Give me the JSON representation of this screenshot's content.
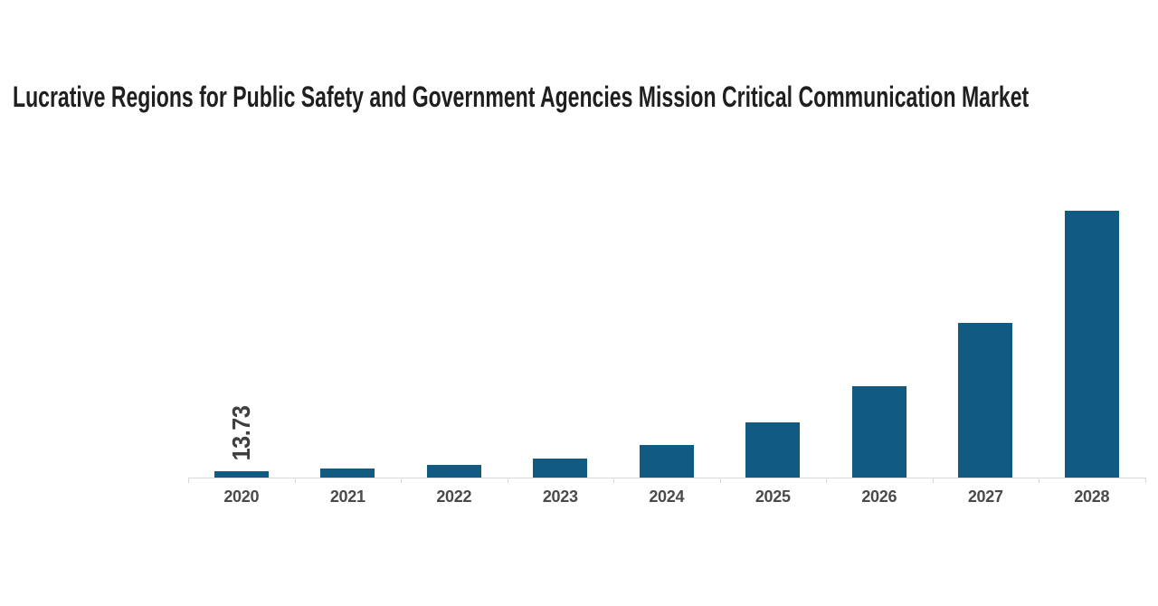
{
  "title": {
    "text": "Lucrative Regions for Public Safety and Government Agencies Mission Critical Communication Market"
  },
  "chart_data": {
    "type": "bar",
    "title": "Lucrative Regions for Public Safety and Government Agencies Mission Critical Communication Market",
    "categories": [
      "2020",
      "2021",
      "2022",
      "2023",
      "2024",
      "2025",
      "2026",
      "2027",
      "2028"
    ],
    "values": [
      13.73,
      19.6,
      26.7,
      41.2,
      69.8,
      118.9,
      197.3,
      335.4,
      578.6
    ],
    "value_labels": [
      "13.73",
      "",
      "",
      "",
      "",
      "",
      "",
      "",
      ""
    ],
    "xlabel": "",
    "ylabel": "",
    "ylim": [
      0,
      590
    ],
    "grid": false,
    "y_axis_shown": false,
    "legend_position": "none",
    "colors": {
      "bar": "#115a82",
      "axis_line": "#d9d9d9",
      "tick_label": "#4a4a4a",
      "data_label": "#3f3f3f",
      "title": "#1f1f1f",
      "background": "#ffffff"
    }
  }
}
